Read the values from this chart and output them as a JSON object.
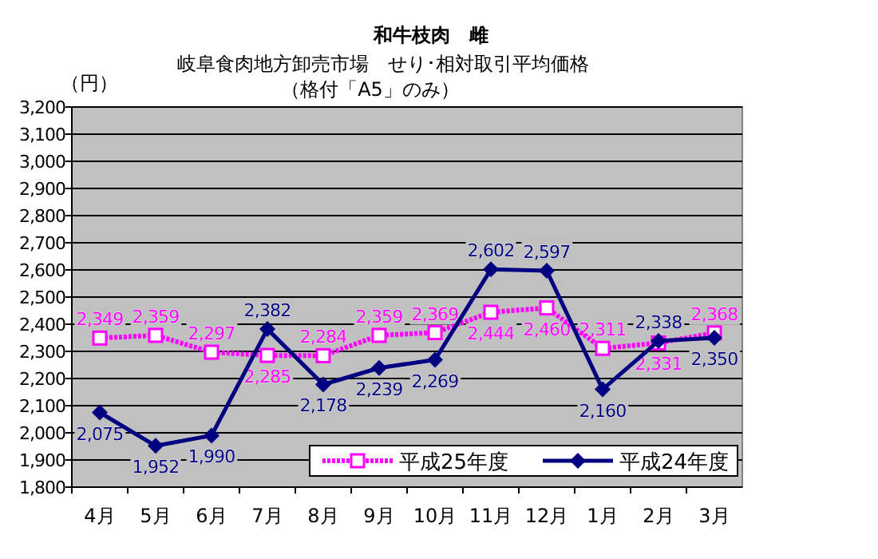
{
  "chart_data": {
    "type": "line",
    "title": "和牛枝肉　雌",
    "subtitle": "岐阜食肉地方卸売市場　せり･相対取引平均価格",
    "annotations": [
      "（格付「A5」のみ）"
    ],
    "ylabel": "（円）",
    "categories": [
      "4月",
      "5月",
      "6月",
      "7月",
      "8月",
      "9月",
      "10月",
      "11月",
      "12月",
      "1月",
      "2月",
      "3月"
    ],
    "series": [
      {
        "name": "平成25年度",
        "color": "#ff00ff",
        "marker": "square",
        "line_style": "dotted",
        "values": [
          2349,
          2359,
          2297,
          2285,
          2284,
          2359,
          2369,
          2444,
          2460,
          2311,
          2331,
          2368
        ],
        "value_labels": [
          "2,349",
          "2,359",
          "2,297",
          "2,285",
          "2,284",
          "2,359",
          "2,369",
          "2,444",
          "2,460",
          "2,311",
          "2,331",
          "2,368"
        ]
      },
      {
        "name": "平成24年度",
        "color": "#000080",
        "marker": "diamond",
        "line_style": "solid",
        "values": [
          2075,
          1952,
          1990,
          2382,
          2178,
          2239,
          2269,
          2602,
          2597,
          2160,
          2338,
          2350
        ],
        "value_labels": [
          "2,075",
          "1,952",
          "1,990",
          "2,382",
          "2,178",
          "2,239",
          "2,269",
          "2,602",
          "2,597",
          "2,160",
          "2,338",
          "2,350"
        ]
      }
    ],
    "ylim": [
      1800,
      3200
    ],
    "yticks": [
      {
        "value": 1800,
        "label": "1,800"
      },
      {
        "value": 1900,
        "label": "1,900"
      },
      {
        "value": 2000,
        "label": "2,000"
      },
      {
        "value": 2100,
        "label": "2,100"
      },
      {
        "value": 2200,
        "label": "2,200"
      },
      {
        "value": 2300,
        "label": "2,300"
      },
      {
        "value": 2400,
        "label": "2,400"
      },
      {
        "value": 2500,
        "label": "2,500"
      },
      {
        "value": 2600,
        "label": "2,600"
      },
      {
        "value": 2700,
        "label": "2,700"
      },
      {
        "value": 2800,
        "label": "2,800"
      },
      {
        "value": 2900,
        "label": "2,900"
      },
      {
        "value": 3000,
        "label": "3,000"
      },
      {
        "value": 3100,
        "label": "3,100"
      },
      {
        "value": 3200,
        "label": "3,200"
      }
    ],
    "grid": "y",
    "legend": "bottom right"
  }
}
